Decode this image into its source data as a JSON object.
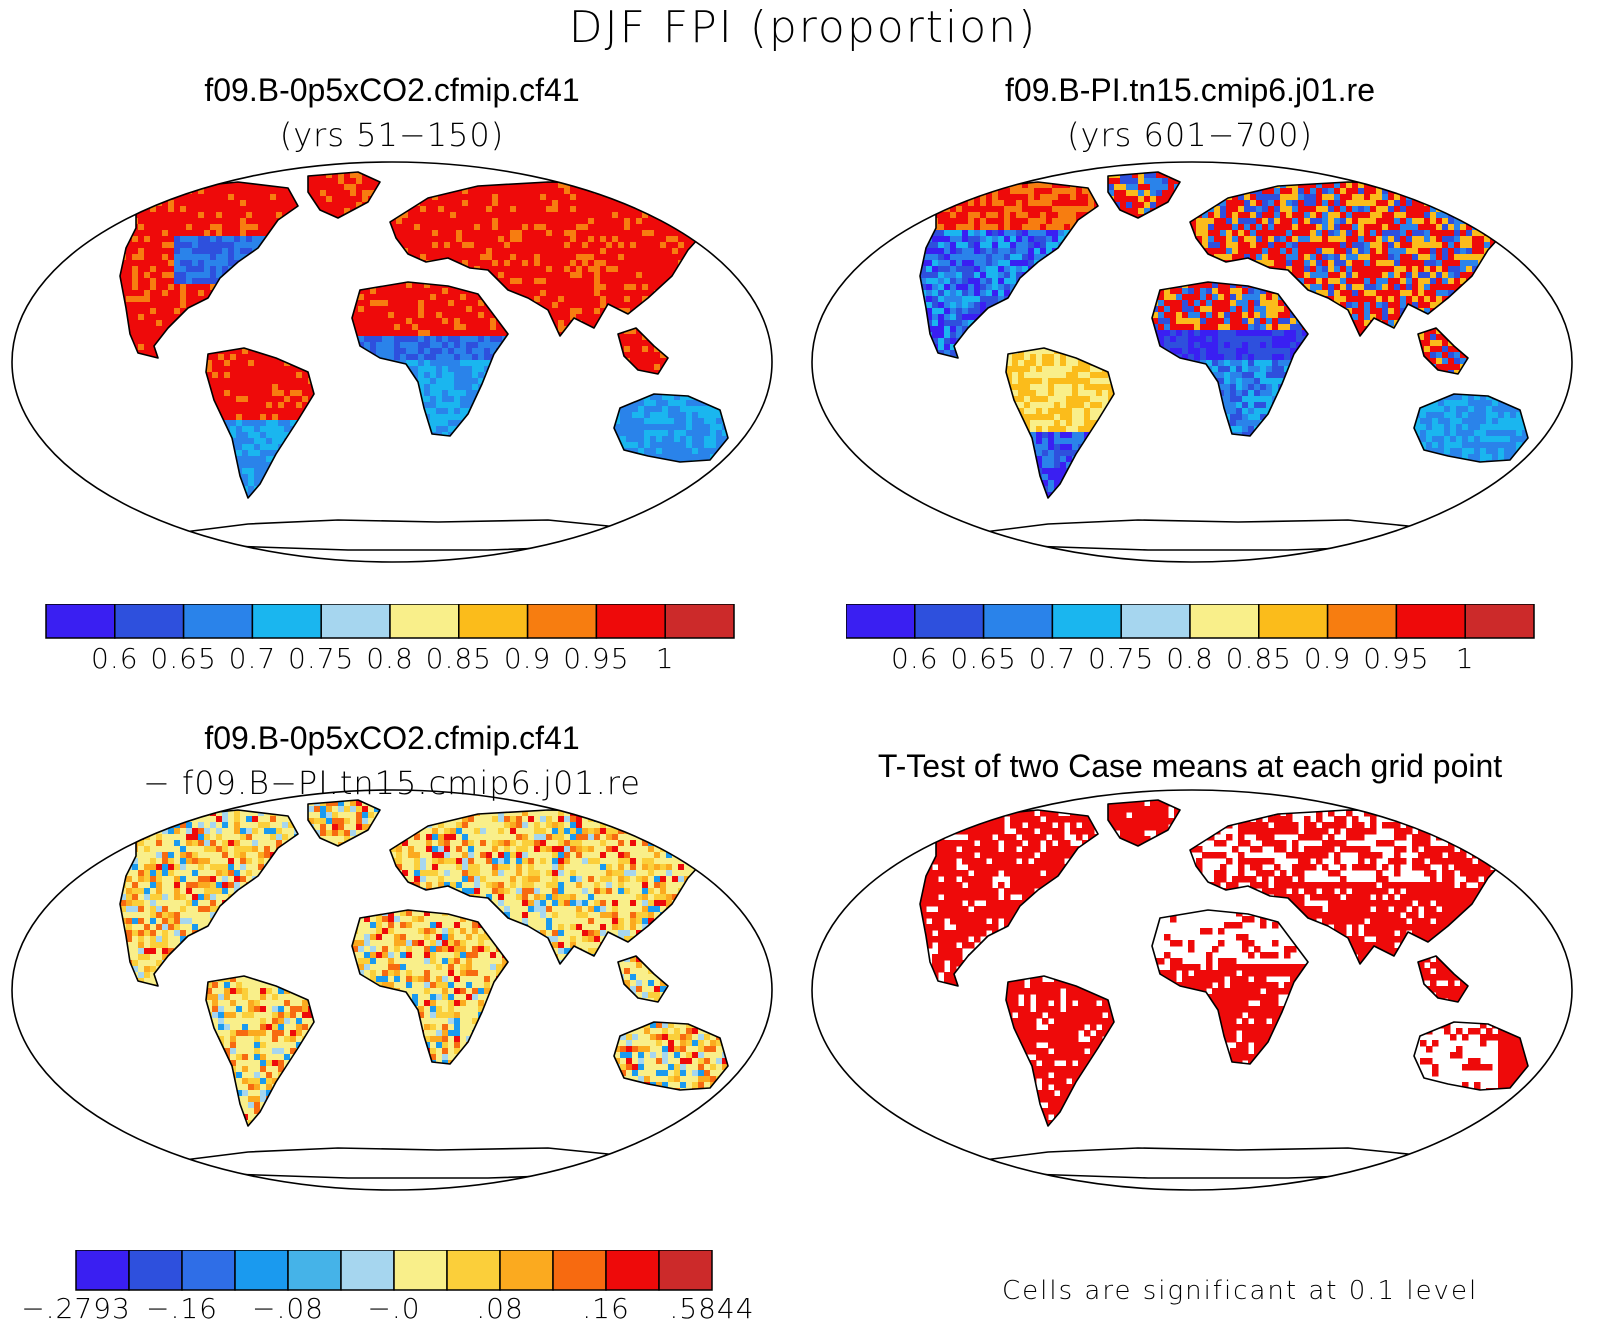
{
  "figure": {
    "title": "DJF FPI (proportion)"
  },
  "panels": [
    {
      "id": "case1",
      "title": "f09.B-0p5xCO2.cfmip.cf41",
      "subtitle": "(yrs 51−150)",
      "theme": "high"
    },
    {
      "id": "case2",
      "title": "f09.B-PI.tn15.cmip6.j01.re",
      "subtitle": "(yrs 601−700)",
      "theme": "mixed"
    },
    {
      "id": "difference",
      "title": "f09.B-0p5xCO2.cfmip.cf41",
      "subtitle": "− f09.B−PI.tn15.cmip6.j01.re",
      "theme": "diff"
    },
    {
      "id": "ttest",
      "title": "T-Test of two Case means at each grid point",
      "subtitle": "",
      "theme": "sig",
      "note": "Cells are significant at 0.1 level"
    }
  ],
  "colorbar_fpi": {
    "colors": [
      "#3a1ff2",
      "#2e50dd",
      "#2a83ea",
      "#1ab6ef",
      "#a6d6ef",
      "#f9ef8a",
      "#fbbc1b",
      "#f77d10",
      "#ee0a0a",
      "#cc2a2a"
    ],
    "labels": [
      "0.6",
      "0.65",
      "0.7",
      "0.75",
      "0.8",
      "0.85",
      "0.9",
      "0.95",
      "1"
    ]
  },
  "colorbar_diff": {
    "colors": [
      "#3a1ff2",
      "#2e50dd",
      "#2f6ee7",
      "#1a9aef",
      "#45b3e8",
      "#a6d6ef",
      "#f9ef8a",
      "#fbcf3a",
      "#fbaa1f",
      "#f76a10",
      "#ee0a0a",
      "#cc2a2a"
    ],
    "labels": [
      "−.2793",
      "−.16",
      "−.08",
      "−.0",
      ".08",
      ".16",
      ".5844"
    ]
  }
}
